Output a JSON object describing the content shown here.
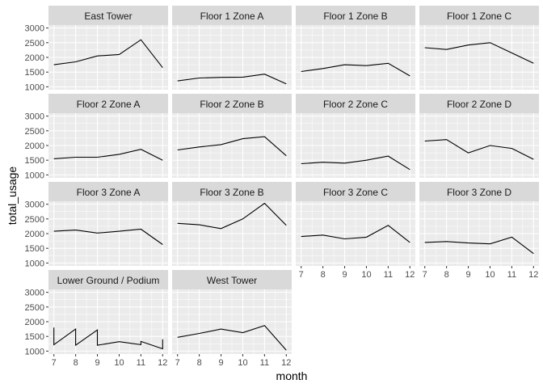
{
  "chart_data": {
    "type": "line",
    "layout": "facet_wrap",
    "ncol": 4,
    "xlabel": "month",
    "ylabel": "total_usage",
    "xlim": [
      7,
      12
    ],
    "ylim": [
      1000,
      3000
    ],
    "x_ticks": [
      7,
      8,
      9,
      10,
      11,
      12
    ],
    "y_ticks": [
      1000,
      1500,
      2000,
      2500,
      3000
    ],
    "grid": true,
    "facets": [
      {
        "label": "East Tower",
        "x": [
          7,
          8,
          9,
          10,
          11,
          12
        ],
        "y": [
          1750,
          1850,
          2050,
          2100,
          2600,
          1650
        ]
      },
      {
        "label": "Floor 1 Zone A",
        "x": [
          7,
          8,
          9,
          10,
          11,
          12
        ],
        "y": [
          1200,
          1300,
          1320,
          1330,
          1430,
          1100
        ]
      },
      {
        "label": "Floor 1 Zone B",
        "x": [
          7,
          8,
          9,
          10,
          11,
          12
        ],
        "y": [
          1520,
          1620,
          1750,
          1720,
          1800,
          1370
        ]
      },
      {
        "label": "Floor 1 Zone C",
        "x": [
          7,
          8,
          9,
          10,
          11,
          12
        ],
        "y": [
          2330,
          2270,
          2420,
          2500,
          2150,
          1800
        ]
      },
      {
        "label": "Floor 2 Zone A",
        "x": [
          7,
          8,
          9,
          10,
          11,
          12
        ],
        "y": [
          1550,
          1600,
          1600,
          1700,
          1870,
          1500
        ]
      },
      {
        "label": "Floor 2 Zone B",
        "x": [
          7,
          8,
          9,
          10,
          11,
          12
        ],
        "y": [
          1850,
          1950,
          2030,
          2230,
          2300,
          1650
        ]
      },
      {
        "label": "Floor 2 Zone C",
        "x": [
          7,
          8,
          9,
          10,
          11,
          12
        ],
        "y": [
          1380,
          1430,
          1400,
          1500,
          1640,
          1180
        ]
      },
      {
        "label": "Floor 2 Zone D",
        "x": [
          7,
          8,
          9,
          10,
          11,
          12
        ],
        "y": [
          2150,
          2200,
          1750,
          2000,
          1900,
          1530
        ]
      },
      {
        "label": "Floor 3 Zone A",
        "x": [
          7,
          8,
          9,
          10,
          11,
          12
        ],
        "y": [
          2080,
          2120,
          2020,
          2080,
          2150,
          1630
        ]
      },
      {
        "label": "Floor 3 Zone B",
        "x": [
          7,
          8,
          9,
          10,
          11,
          12
        ],
        "y": [
          2350,
          2300,
          2170,
          2500,
          3030,
          2280
        ]
      },
      {
        "label": "Floor 3 Zone C",
        "x": [
          7,
          8,
          9,
          10,
          11,
          12
        ],
        "y": [
          1900,
          1950,
          1820,
          1880,
          2280,
          1700
        ]
      },
      {
        "label": "Floor 3 Zone D",
        "x": [
          7,
          8,
          9,
          10,
          11,
          12
        ],
        "y": [
          1700,
          1730,
          1680,
          1650,
          1880,
          1320
        ]
      },
      {
        "label": "Lower Ground / Podium",
        "x": [
          7,
          7,
          8,
          8,
          9,
          9,
          10,
          11,
          11,
          12,
          12
        ],
        "y": [
          1800,
          1220,
          1750,
          1200,
          1720,
          1200,
          1320,
          1220,
          1330,
          1080,
          1400
        ]
      },
      {
        "label": "West Tower",
        "x": [
          7,
          8,
          9,
          10,
          11,
          12
        ],
        "y": [
          1470,
          1600,
          1750,
          1630,
          1870,
          1030
        ]
      }
    ]
  }
}
